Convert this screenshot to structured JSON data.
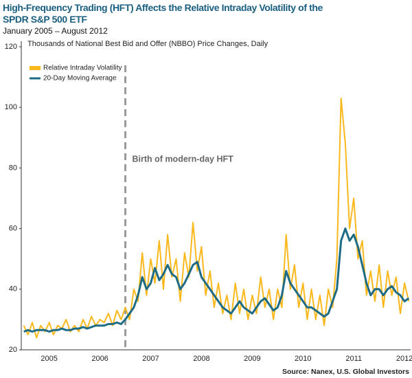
{
  "chart_data": {
    "type": "line",
    "title": "High-Frequency Trading (HFT) Affects the Relative Intraday Volatility of the SPDR S&P 500 ETF",
    "subtitle": "January 2005 – August 2012",
    "y_axis_label": "Thousands of National Best Bid and Offer (NBBO) Price Changes, Daily",
    "annotation": {
      "text": "Birth of modern-day HFT",
      "x": 2007
    },
    "source": "Source: Nanex, U.S. Global Investors",
    "x": [
      2005.0,
      2005.083,
      2005.167,
      2005.25,
      2005.333,
      2005.417,
      2005.5,
      2005.583,
      2005.667,
      2005.75,
      2005.833,
      2005.917,
      2006.0,
      2006.083,
      2006.167,
      2006.25,
      2006.333,
      2006.417,
      2006.5,
      2006.583,
      2006.667,
      2006.75,
      2006.833,
      2006.917,
      2007.0,
      2007.083,
      2007.167,
      2007.25,
      2007.333,
      2007.417,
      2007.5,
      2007.583,
      2007.667,
      2007.75,
      2007.833,
      2007.917,
      2008.0,
      2008.083,
      2008.167,
      2008.25,
      2008.333,
      2008.417,
      2008.5,
      2008.583,
      2008.667,
      2008.75,
      2008.833,
      2008.917,
      2009.0,
      2009.083,
      2009.167,
      2009.25,
      2009.333,
      2009.417,
      2009.5,
      2009.583,
      2009.667,
      2009.75,
      2009.833,
      2009.917,
      2010.0,
      2010.083,
      2010.167,
      2010.25,
      2010.333,
      2010.417,
      2010.5,
      2010.583,
      2010.667,
      2010.75,
      2010.833,
      2010.917,
      2011.0,
      2011.083,
      2011.167,
      2011.25,
      2011.333,
      2011.417,
      2011.5,
      2011.583,
      2011.667,
      2011.75,
      2011.833,
      2011.917,
      2012.0,
      2012.083,
      2012.167,
      2012.25,
      2012.333,
      2012.417,
      2012.5,
      2012.583
    ],
    "series": [
      {
        "name": "Relative Intraday Volatility",
        "color": "#fbb81c",
        "width": 2,
        "values": [
          28,
          25,
          29,
          24,
          28,
          26,
          29,
          25,
          28,
          27,
          30,
          26,
          28,
          26,
          30,
          27,
          31,
          28,
          30,
          29,
          32,
          28,
          33,
          30,
          34,
          30,
          40,
          36,
          52,
          38,
          50,
          42,
          56,
          40,
          58,
          44,
          50,
          36,
          52,
          44,
          62,
          46,
          54,
          38,
          46,
          34,
          42,
          32,
          38,
          30,
          42,
          32,
          40,
          30,
          38,
          32,
          44,
          34,
          40,
          30,
          40,
          34,
          58,
          40,
          48,
          34,
          42,
          30,
          40,
          30,
          38,
          28,
          40,
          34,
          50,
          103,
          88,
          60,
          70,
          50,
          56,
          38,
          46,
          36,
          48,
          34,
          46,
          38,
          44,
          32,
          42,
          36
        ]
      },
      {
        "name": "20-Day Moving Average",
        "color": "#1d6b85",
        "width": 3,
        "values": [
          26,
          26.5,
          26,
          26.5,
          26.5,
          26.5,
          26,
          26.5,
          26.5,
          27,
          26.5,
          26.5,
          27,
          27,
          27.5,
          27,
          27.5,
          28,
          28,
          28,
          28.5,
          28.5,
          29,
          28.5,
          30,
          32,
          34,
          38,
          44,
          40,
          42,
          47,
          43,
          45,
          48,
          45,
          44,
          40,
          42,
          45,
          48,
          49,
          44,
          42,
          40,
          38,
          36,
          34,
          33,
          32,
          34,
          36,
          34,
          33,
          32,
          34,
          36,
          37,
          35,
          33,
          34,
          38,
          46,
          42,
          40,
          38,
          36,
          34,
          34,
          33,
          32,
          31,
          32,
          36,
          40,
          56,
          60,
          56,
          58,
          54,
          48,
          42,
          38,
          40,
          40,
          38,
          40,
          41,
          39,
          38,
          36,
          37
        ]
      }
    ],
    "xlim": [
      2004.95,
      2012.62
    ],
    "xticks": [
      {
        "value": 2005.5,
        "label": "2005"
      },
      {
        "value": 2006.5,
        "label": "2006"
      },
      {
        "value": 2007.5,
        "label": "2007"
      },
      {
        "value": 2008.5,
        "label": "2008"
      },
      {
        "value": 2009.5,
        "label": "2009"
      },
      {
        "value": 2010.5,
        "label": "2010"
      },
      {
        "value": 2011.5,
        "label": "2011"
      },
      {
        "value": 2012.5,
        "label": "2012"
      }
    ],
    "ylim": [
      20,
      120
    ],
    "yticks": [
      20,
      40,
      60,
      80,
      100,
      120
    ],
    "grid": false,
    "legend": "top-left"
  }
}
